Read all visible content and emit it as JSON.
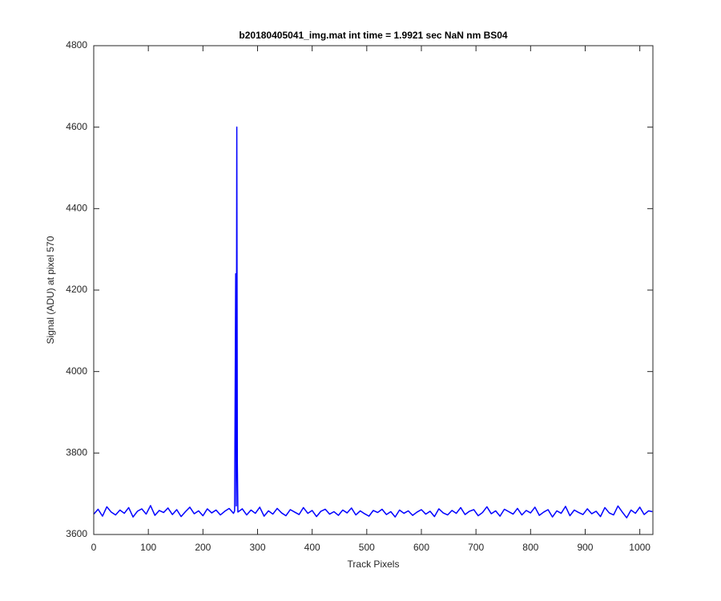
{
  "chart_data": {
    "type": "line",
    "title": "b20180405041_img.mat int time = 1.9921 sec  NaN nm BS04",
    "x_label": "Track Pixels",
    "y_label": "Signal (ADU) at pixel 570",
    "xlim": [
      0,
      1024
    ],
    "ylim": [
      3600,
      4800
    ],
    "xticks": [
      0,
      100,
      200,
      300,
      400,
      500,
      600,
      700,
      800,
      900,
      1000
    ],
    "yticks": [
      3600,
      3800,
      4000,
      4200,
      4400,
      4600,
      4800
    ],
    "grid": false,
    "series": [
      {
        "color": "#0000ff",
        "x": [
          0,
          8,
          16,
          24,
          32,
          40,
          48,
          56,
          64,
          72,
          80,
          88,
          96,
          104,
          112,
          120,
          128,
          136,
          144,
          152,
          160,
          168,
          176,
          184,
          192,
          200,
          208,
          216,
          224,
          232,
          240,
          248,
          256,
          258,
          260,
          261,
          262,
          263,
          264,
          272,
          280,
          288,
          296,
          304,
          312,
          320,
          328,
          336,
          344,
          352,
          360,
          368,
          376,
          384,
          392,
          400,
          408,
          416,
          424,
          432,
          440,
          448,
          456,
          464,
          472,
          480,
          488,
          496,
          504,
          512,
          520,
          528,
          536,
          544,
          552,
          560,
          568,
          576,
          584,
          592,
          600,
          608,
          616,
          624,
          632,
          640,
          648,
          656,
          664,
          672,
          680,
          688,
          696,
          704,
          712,
          720,
          728,
          736,
          744,
          752,
          760,
          768,
          776,
          784,
          792,
          800,
          808,
          816,
          824,
          832,
          840,
          848,
          856,
          864,
          872,
          880,
          888,
          896,
          904,
          912,
          920,
          928,
          936,
          944,
          952,
          960,
          968,
          976,
          984,
          992,
          1000,
          1008,
          1016,
          1023
        ],
        "values": [
          3650,
          3662,
          3645,
          3668,
          3655,
          3648,
          3660,
          3652,
          3666,
          3643,
          3657,
          3663,
          3650,
          3671,
          3647,
          3659,
          3654,
          3665,
          3649,
          3661,
          3644,
          3656,
          3667,
          3651,
          3658,
          3646,
          3663,
          3653,
          3660,
          3648,
          3657,
          3664,
          3652,
          3658,
          4240,
          3670,
          4600,
          3775,
          3655,
          3663,
          3648,
          3660,
          3652,
          3667,
          3645,
          3658,
          3650,
          3664,
          3653,
          3646,
          3661,
          3655,
          3649,
          3666,
          3652,
          3659,
          3644,
          3657,
          3662,
          3650,
          3656,
          3647,
          3660,
          3653,
          3665,
          3648,
          3658,
          3651,
          3645,
          3659,
          3654,
          3662,
          3649,
          3656,
          3643,
          3660,
          3652,
          3658,
          3647,
          3655,
          3661,
          3650,
          3657,
          3644,
          3663,
          3653,
          3648,
          3659,
          3652,
          3666,
          3649,
          3657,
          3661,
          3646,
          3654,
          3668,
          3651,
          3658,
          3645,
          3662,
          3656,
          3650,
          3664,
          3648,
          3659,
          3653,
          3667,
          3647,
          3655,
          3661,
          3643,
          3658,
          3652,
          3669,
          3646,
          3660,
          3654,
          3649,
          3663,
          3651,
          3657,
          3644,
          3666,
          3653,
          3648,
          3670,
          3655,
          3641,
          3660,
          3652,
          3667,
          3649,
          3658,
          3656
        ]
      }
    ]
  }
}
